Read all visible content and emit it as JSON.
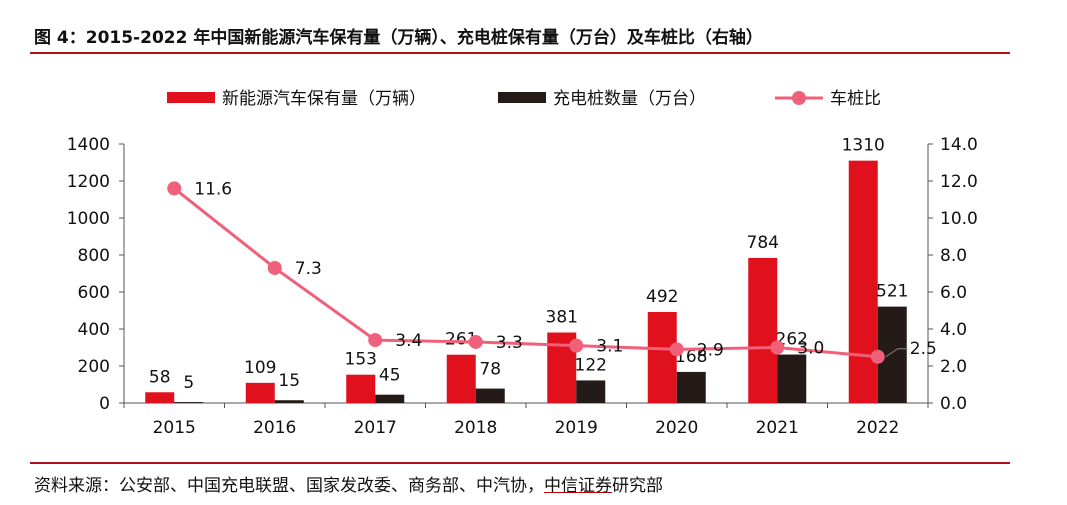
{
  "figure": {
    "title": "图 4：2015-2022 年中国新能源汽车保有量（万辆）、充电桩保有量（万台）及车桩比（右轴）",
    "source_prefix": "资料来源：公安部、中国充电联盟、国家发改委、商务部、中汽协，",
    "source_brand": "中信证券",
    "source_suffix": "研究部"
  },
  "chart_data": {
    "type": "bar",
    "categories": [
      "2015",
      "2016",
      "2017",
      "2018",
      "2019",
      "2020",
      "2021",
      "2022"
    ],
    "series": [
      {
        "name": "新能源汽车保有量（万辆）",
        "type": "bar",
        "axis": "left",
        "color": "#e0101c",
        "values": [
          58,
          109,
          153,
          261,
          381,
          492,
          784,
          1310
        ]
      },
      {
        "name": "充电桩数量（万台）",
        "type": "bar",
        "axis": "left",
        "color": "#241a17",
        "values": [
          5,
          15,
          45,
          78,
          122,
          168,
          262,
          521
        ]
      },
      {
        "name": "车桩比",
        "type": "line",
        "axis": "right",
        "color": "#f0607a",
        "values": [
          11.6,
          7.3,
          3.4,
          3.3,
          3.1,
          2.9,
          3.0,
          2.5
        ],
        "labels": [
          "11.6",
          "7.3",
          "3.4",
          "3.3",
          "3.1",
          "2.9",
          "3.0",
          "2.5"
        ]
      }
    ],
    "y_left": {
      "min": 0,
      "max": 1400,
      "ticks": [
        "0",
        "200",
        "400",
        "600",
        "800",
        "1000",
        "1200",
        "1400"
      ]
    },
    "y_right": {
      "min": 0,
      "max": 14,
      "ticks": [
        "0.0",
        "2.0",
        "4.0",
        "6.0",
        "8.0",
        "10.0",
        "12.0",
        "14.0"
      ]
    },
    "grid": false,
    "legend_position": "top"
  }
}
